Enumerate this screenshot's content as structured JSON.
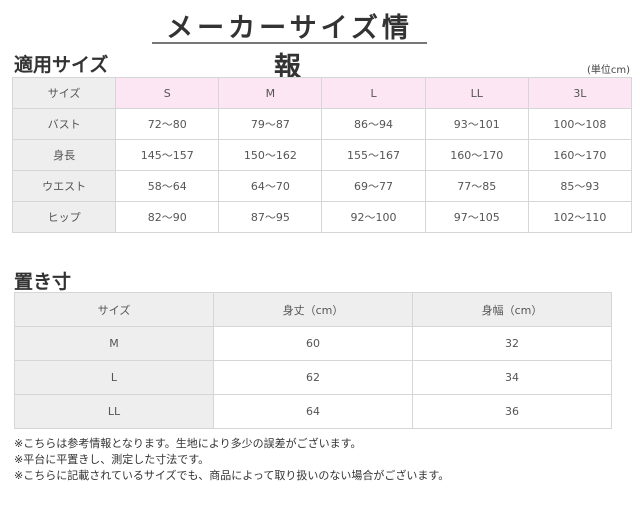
{
  "title": "メーカーサイズ情報",
  "applicable": {
    "heading": "適用サイズ",
    "unit": "(単位cm)",
    "header": [
      "サイズ",
      "S",
      "M",
      "L",
      "LL",
      "3L"
    ],
    "rows": [
      [
        "バスト",
        "72〜80",
        "79〜87",
        "86〜94",
        "93〜101",
        "100〜108"
      ],
      [
        "身長",
        "145〜157",
        "150〜162",
        "155〜167",
        "160〜170",
        "160〜170"
      ],
      [
        "ウエスト",
        "58〜64",
        "64〜70",
        "69〜77",
        "77〜85",
        "85〜93"
      ],
      [
        "ヒップ",
        "82〜90",
        "87〜95",
        "92〜100",
        "97〜105",
        "102〜110"
      ]
    ]
  },
  "flat": {
    "heading": "置き寸",
    "header": [
      "サイズ",
      "身丈（cm）",
      "身幅（cm）"
    ],
    "rows": [
      [
        "M",
        "60",
        "32"
      ],
      [
        "L",
        "62",
        "34"
      ],
      [
        "LL",
        "64",
        "36"
      ]
    ]
  },
  "notes": [
    "※こちらは参考情報となります。生地により多少の誤差がございます。",
    "※平台に平置きし、測定した寸法です。",
    "※こちらに記載されているサイズでも、商品によって取り扱いのない場合がございます。"
  ]
}
